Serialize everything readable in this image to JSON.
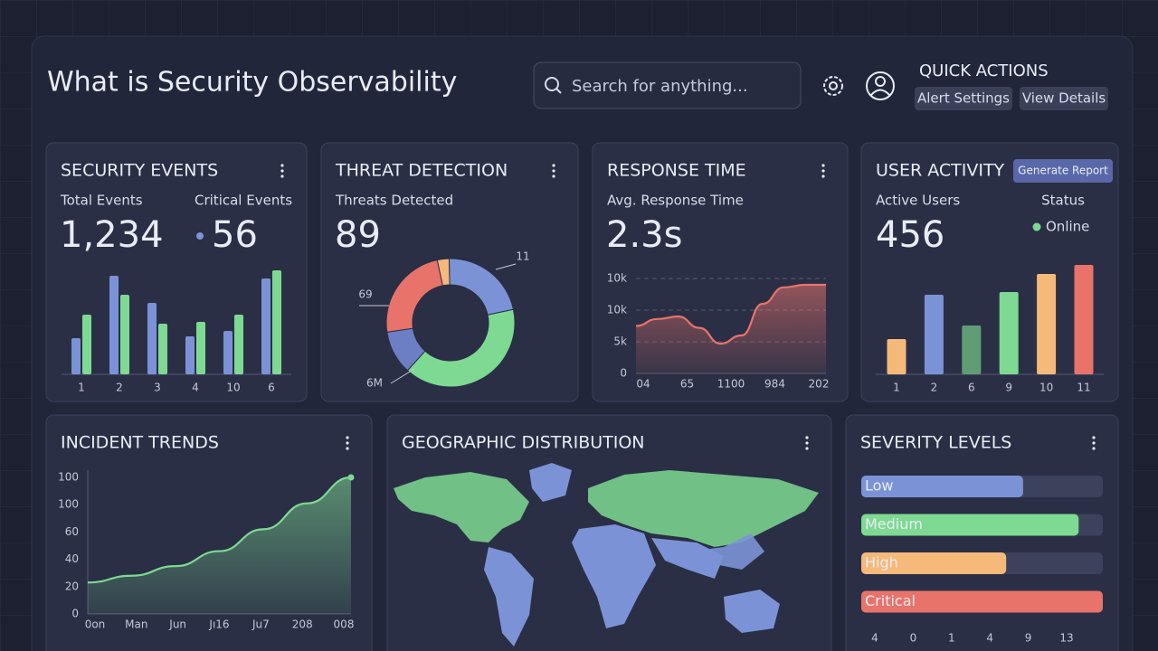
{
  "header": {
    "title": "What is Security Observability",
    "search_placeholder": "Search for anything...",
    "quick_actions": {
      "title": "QUICK ACTIONS",
      "buttons": [
        "Alert Settings",
        "View Details"
      ]
    }
  },
  "security_events": {
    "title": "SECURITY EVENTS",
    "stats": [
      {
        "label": "Total Events",
        "value": "1,234"
      },
      {
        "label": "Critical Events",
        "value": "56"
      }
    ],
    "chart": {
      "type": "bar",
      "categories": [
        "1",
        "2",
        "3",
        "4",
        "10",
        "6"
      ],
      "series": [
        {
          "color": "#7b93d6",
          "values": [
            40,
            109,
            79,
            42,
            48,
            106
          ]
        },
        {
          "color": "#7ed992",
          "values": [
            66,
            88,
            56,
            58,
            66,
            115
          ]
        }
      ]
    }
  },
  "threat_detection": {
    "title": "THREAT DETECTION",
    "stat_label": "Threats Detected",
    "stat_value": "89",
    "chart": {
      "type": "pie",
      "values": [
        3,
        22,
        40,
        11,
        24
      ],
      "colors": [
        "#f5b97a",
        "#7b93d6",
        "#7ed992",
        "#6c7fc4",
        "#e8736b"
      ],
      "annotations": [
        "11",
        "69",
        "6M"
      ]
    }
  },
  "response_time": {
    "title": "RESPONSE TIME",
    "stat_label": "Avg. Response Time",
    "stat_value": "2.3s",
    "chart": {
      "type": "area",
      "color": "#e8736b",
      "y_labels": [
        "10k",
        "10k",
        "5k",
        "0"
      ],
      "x_labels": [
        "04",
        "65",
        "1100",
        "984",
        "202"
      ],
      "values": [
        7.5,
        8.6,
        9,
        7.2,
        4.7,
        6,
        11,
        13.6,
        14,
        14
      ]
    }
  },
  "user_activity": {
    "title": "USER ACTIVITY",
    "button": "Generate Report",
    "stat_label": "Active Users",
    "stat_value": "456",
    "status_label": "Status",
    "status": "Online",
    "chart": {
      "type": "bar",
      "categories": [
        "1",
        "2",
        "6",
        "9",
        "10",
        "11"
      ],
      "values": [
        39,
        88,
        54,
        91,
        111,
        121
      ],
      "colors": [
        "#f5b97a",
        "#7b93d6",
        "#5f9e74",
        "#7ed992",
        "#f5b97a",
        "#e8736b"
      ]
    }
  },
  "incident_trends": {
    "title": "INCIDENT TRENDS",
    "chart": {
      "type": "area",
      "color": "#7ed992",
      "y_labels": [
        "100",
        "100",
        "60",
        "40",
        "20",
        "0"
      ],
      "x_labels": [
        "0on",
        "Man",
        "Jun",
        "Jı16",
        "Ju7",
        "208",
        "008"
      ],
      "values": [
        23,
        28,
        35,
        46,
        62,
        81,
        100
      ]
    }
  },
  "geographic_distribution": {
    "title": "GEOGRAPHIC DISTRIBUTION"
  },
  "severity_levels": {
    "title": "SEVERITY LEVELS",
    "chart": {
      "type": "bar",
      "categories": [
        "Low",
        "Medium",
        "High",
        "Critical"
      ],
      "values": [
        67,
        90,
        60,
        100
      ],
      "colors": [
        "#7b93d6",
        "#7ed992",
        "#f5b97a",
        "#e8736b"
      ],
      "x_labels": [
        "4",
        "0",
        "1",
        "4",
        "9",
        "13"
      ]
    }
  }
}
